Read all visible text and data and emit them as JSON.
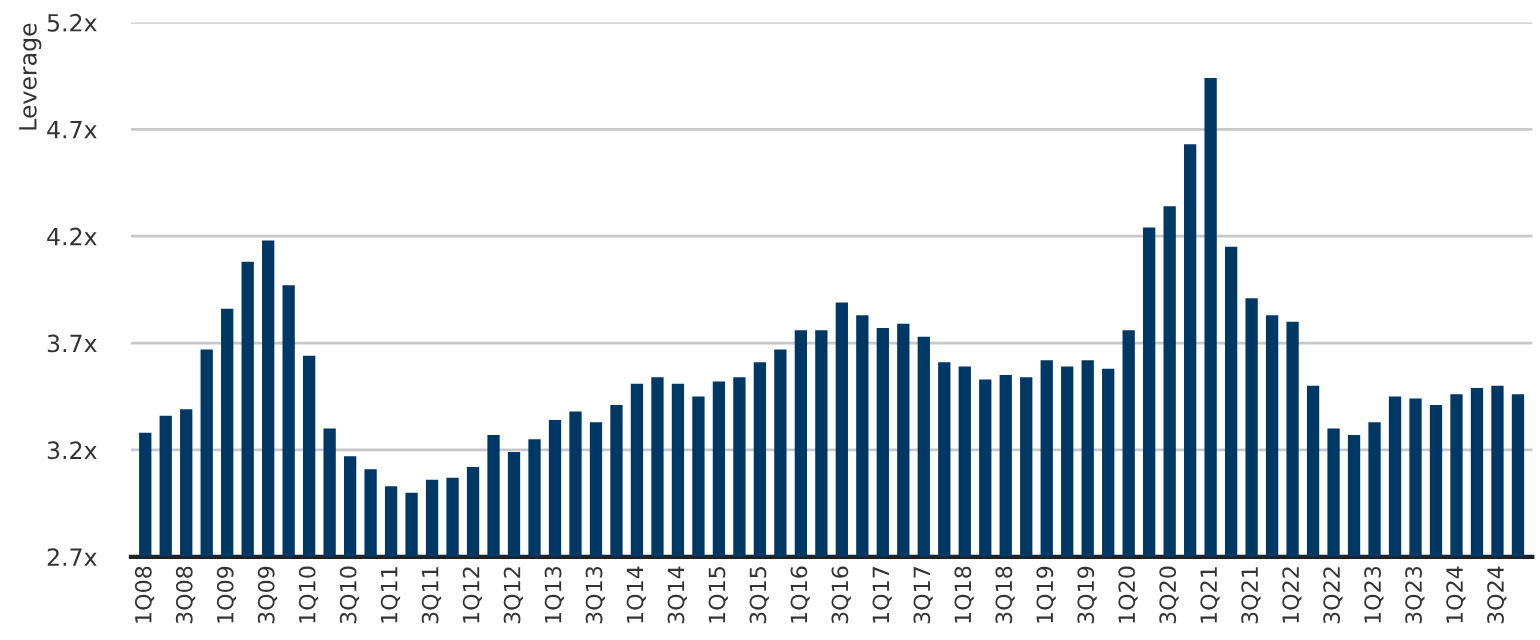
{
  "chart_data": {
    "type": "bar",
    "ylabel": "Leverage",
    "categories": [
      "1Q08",
      null,
      "3Q08",
      null,
      "1Q09",
      null,
      "3Q09",
      null,
      "1Q10",
      null,
      "3Q10",
      null,
      "1Q11",
      null,
      "3Q11",
      null,
      "1Q12",
      null,
      "3Q12",
      null,
      "1Q13",
      null,
      "3Q13",
      null,
      "1Q14",
      null,
      "3Q14",
      null,
      "1Q15",
      null,
      "3Q15",
      null,
      "1Q16",
      null,
      "3Q16",
      null,
      "1Q17",
      null,
      "3Q17",
      null,
      "1Q18",
      null,
      "3Q18",
      null,
      "1Q19",
      null,
      "3Q19",
      null,
      "1Q20",
      null,
      "3Q20",
      null,
      "1Q21",
      null,
      "3Q21",
      null,
      "1Q22",
      null,
      "3Q22",
      null,
      "1Q23",
      null,
      "3Q23",
      null,
      "1Q24",
      null,
      "3Q24",
      null
    ],
    "values": [
      3.28,
      3.36,
      3.39,
      3.67,
      3.86,
      4.08,
      4.18,
      3.97,
      3.64,
      3.3,
      3.17,
      3.11,
      3.03,
      3.0,
      3.06,
      3.07,
      3.12,
      3.27,
      3.19,
      3.25,
      3.34,
      3.38,
      3.33,
      3.41,
      3.51,
      3.54,
      3.51,
      3.45,
      3.52,
      3.54,
      3.61,
      3.67,
      3.76,
      3.76,
      3.89,
      3.83,
      3.77,
      3.79,
      3.73,
      3.61,
      3.59,
      3.53,
      3.55,
      3.54,
      3.62,
      3.59,
      3.62,
      3.58,
      3.76,
      4.24,
      4.34,
      4.63,
      4.94,
      4.15,
      3.91,
      3.83,
      3.8,
      3.5,
      3.3,
      3.27,
      3.33,
      3.45,
      3.44,
      3.41,
      3.46,
      3.49,
      3.5,
      3.46
    ],
    "color": "#003865",
    "ylim": [
      2.7,
      5.2
    ],
    "yticks": [
      {
        "value": 2.7,
        "label": "2.7x"
      },
      {
        "value": 3.2,
        "label": "3.2x"
      },
      {
        "value": 3.7,
        "label": "3.7x"
      },
      {
        "value": 4.2,
        "label": "4.2x"
      },
      {
        "value": 4.7,
        "label": "4.7x"
      },
      {
        "value": 5.2,
        "label": "5.2x"
      }
    ],
    "grid": "y",
    "legend": false
  }
}
